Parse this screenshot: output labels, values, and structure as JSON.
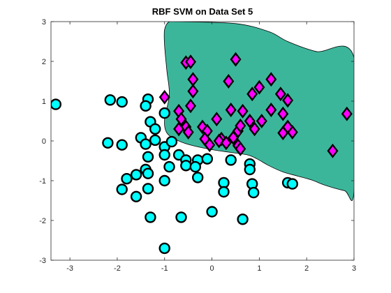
{
  "chart_data": {
    "type": "scatter",
    "title": "RBF SVM on Data Set 5",
    "xlabel": "",
    "ylabel": "",
    "xlim": [
      -3.4,
      3
    ],
    "ylim": [
      -3,
      3
    ],
    "xticks": [
      -3,
      -2,
      -1,
      0,
      1,
      2,
      3
    ],
    "yticks": [
      -3,
      -2,
      -1,
      0,
      1,
      2,
      3
    ],
    "grid": false,
    "colors": {
      "region": "#3CB69B",
      "class_a": "#00FFFF",
      "class_b": "#FF00FF",
      "edge": "#000000"
    },
    "decision_region": [
      [
        -0.9,
        3.0
      ],
      [
        -0.7,
        3.0
      ],
      [
        0.5,
        2.95
      ],
      [
        1.2,
        2.75
      ],
      [
        1.6,
        2.5
      ],
      [
        2.2,
        2.25
      ],
      [
        3.0,
        2.1
      ],
      [
        3.0,
        -1.25
      ],
      [
        2.8,
        -1.25
      ],
      [
        2.4,
        -1.12
      ],
      [
        2.1,
        -0.98
      ],
      [
        1.8,
        -0.88
      ],
      [
        1.5,
        -0.78
      ],
      [
        1.2,
        -0.62
      ],
      [
        0.95,
        -0.45
      ],
      [
        0.75,
        -0.35
      ],
      [
        0.4,
        -0.29
      ],
      [
        0.0,
        -0.22
      ],
      [
        -0.4,
        -0.12
      ],
      [
        -0.7,
        0.0
      ],
      [
        -0.95,
        0.2
      ],
      [
        -1.0,
        0.55
      ],
      [
        -0.9,
        1.15
      ],
      [
        -0.95,
        1.75
      ],
      [
        -1.0,
        2.4
      ],
      [
        -1.0,
        2.8
      ]
    ],
    "series": [
      {
        "marker": "circle",
        "points": [
          [
            -3.3,
            0.92
          ],
          [
            -2.15,
            1.03
          ],
          [
            -1.9,
            0.98
          ],
          [
            -1.35,
            1.05
          ],
          [
            -1.4,
            0.88
          ],
          [
            -1.0,
            0.7
          ],
          [
            -1.3,
            0.48
          ],
          [
            -1.2,
            0.3
          ],
          [
            -1.5,
            0.08
          ],
          [
            -1.2,
            0.02
          ],
          [
            -1.4,
            -0.08
          ],
          [
            -2.2,
            -0.05
          ],
          [
            -1.9,
            -0.1
          ],
          [
            -1.0,
            -0.15
          ],
          [
            -0.85,
            -0.02
          ],
          [
            -1.0,
            -0.35
          ],
          [
            -0.7,
            -0.35
          ],
          [
            -1.35,
            -0.4
          ],
          [
            -0.55,
            -0.48
          ],
          [
            -0.3,
            -0.48
          ],
          [
            -0.55,
            -0.62
          ],
          [
            -0.35,
            -0.65
          ],
          [
            -0.1,
            -0.45
          ],
          [
            -0.9,
            -0.65
          ],
          [
            -1.4,
            -0.72
          ],
          [
            -1.6,
            -0.85
          ],
          [
            -1.35,
            -0.82
          ],
          [
            -1.8,
            -0.95
          ],
          [
            -1.0,
            -1.0
          ],
          [
            -0.3,
            -0.92
          ],
          [
            -1.35,
            -1.2
          ],
          [
            -1.9,
            -1.22
          ],
          [
            -1.6,
            -1.4
          ],
          [
            0.25,
            -1.05
          ],
          [
            0.25,
            -1.28
          ],
          [
            0.4,
            -0.48
          ],
          [
            0.8,
            -0.58
          ],
          [
            0.8,
            -0.72
          ],
          [
            0.85,
            -1.08
          ],
          [
            0.88,
            -1.3
          ],
          [
            1.6,
            -1.05
          ],
          [
            1.7,
            -1.08
          ],
          [
            -1.3,
            -1.92
          ],
          [
            -0.65,
            -1.92
          ],
          [
            0.0,
            -1.78
          ],
          [
            0.65,
            -1.97
          ],
          [
            -1.0,
            -2.7
          ]
        ]
      },
      {
        "marker": "diamond",
        "points": [
          [
            -0.55,
            1.97
          ],
          [
            -0.45,
            1.99
          ],
          [
            0.5,
            2.05
          ],
          [
            -0.4,
            1.55
          ],
          [
            0.35,
            1.5
          ],
          [
            -0.4,
            1.25
          ],
          [
            -1.0,
            1.1
          ],
          [
            -0.45,
            0.88
          ],
          [
            -0.7,
            0.75
          ],
          [
            -0.65,
            0.55
          ],
          [
            -0.55,
            0.35
          ],
          [
            -0.7,
            0.3
          ],
          [
            -0.5,
            0.22
          ],
          [
            -0.2,
            0.35
          ],
          [
            -0.1,
            0.25
          ],
          [
            -0.15,
            0.05
          ],
          [
            -0.05,
            -0.1
          ],
          [
            0.1,
            0.55
          ],
          [
            0.2,
            0.05
          ],
          [
            0.15,
            0.0
          ],
          [
            0.3,
            -0.05
          ],
          [
            0.4,
            0.78
          ],
          [
            0.45,
            0.08
          ],
          [
            0.55,
            0.25
          ],
          [
            0.6,
            0.38
          ],
          [
            0.55,
            -0.12
          ],
          [
            0.65,
            0.75
          ],
          [
            0.6,
            -0.2
          ],
          [
            0.8,
            0.5
          ],
          [
            0.9,
            0.3
          ],
          [
            1.0,
            1.35
          ],
          [
            0.85,
            1.18
          ],
          [
            1.05,
            0.5
          ],
          [
            1.25,
            1.55
          ],
          [
            1.25,
            0.78
          ],
          [
            1.45,
            1.18
          ],
          [
            1.5,
            0.68
          ],
          [
            1.6,
            1.02
          ],
          [
            1.5,
            0.2
          ],
          [
            1.7,
            0.22
          ],
          [
            1.6,
            0.35
          ],
          [
            2.55,
            -0.25
          ],
          [
            2.85,
            0.68
          ]
        ]
      }
    ]
  }
}
